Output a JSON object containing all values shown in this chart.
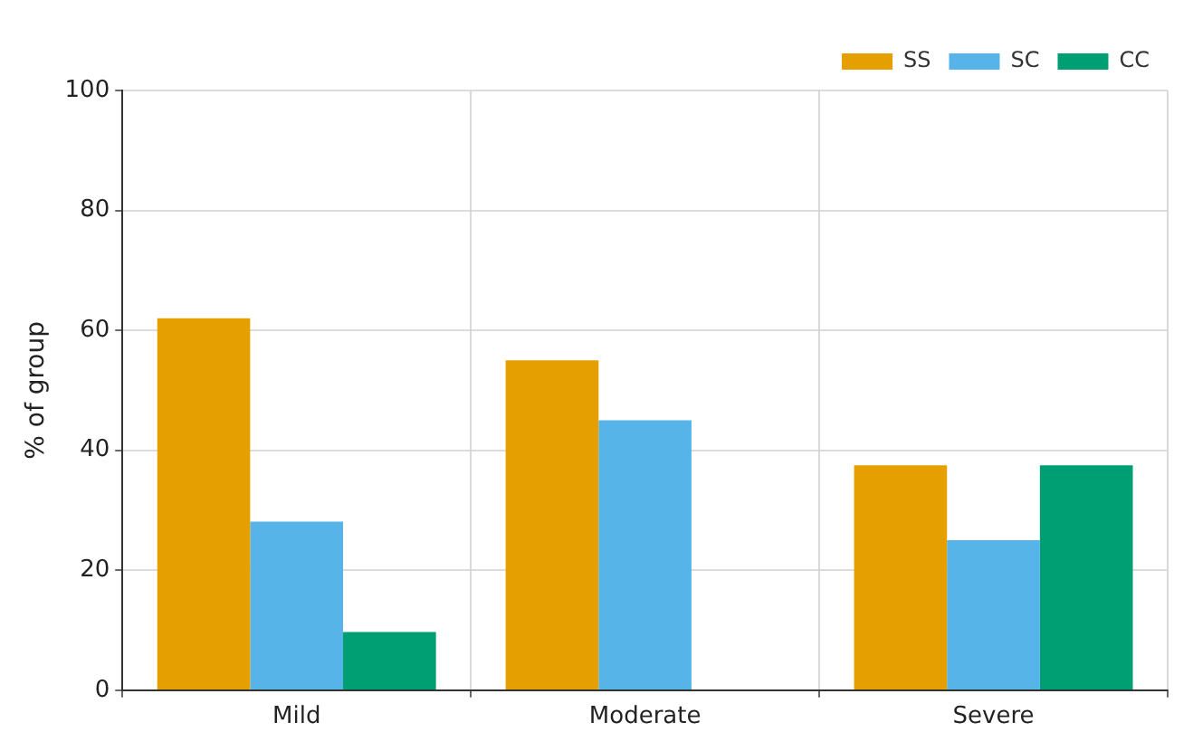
{
  "chart_data": {
    "type": "bar",
    "ylabel": "% of group",
    "categories": [
      "Mild",
      "Moderate",
      "Severe"
    ],
    "series": [
      {
        "name": "SS",
        "color": "#e69f00",
        "values": [
          62,
          55,
          37.5
        ]
      },
      {
        "name": "SC",
        "color": "#56b4e9",
        "values": [
          28.1,
          45,
          25
        ]
      },
      {
        "name": "CC",
        "color": "#009e73",
        "values": [
          9.7,
          0,
          37.5
        ]
      }
    ],
    "ylim": [
      0,
      100
    ],
    "yticks": [
      0,
      20,
      40,
      60,
      80,
      100
    ],
    "grid": true,
    "legend": "top right"
  }
}
